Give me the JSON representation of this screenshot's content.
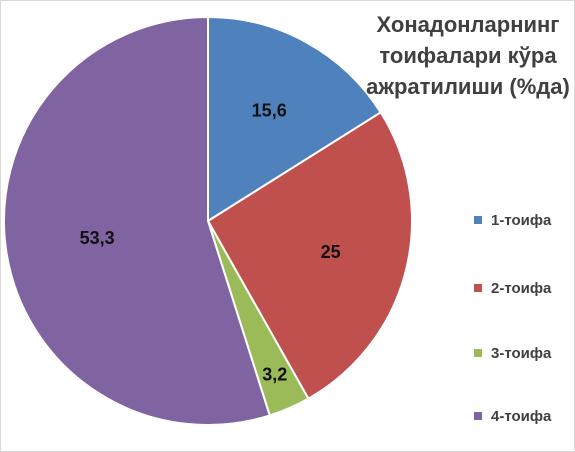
{
  "chart_data": {
    "type": "pie",
    "title_lines": [
      "Хонадонларнинг",
      "тоифалари кўра",
      "ажратилиши (%да)"
    ],
    "categories": [
      "1-тоифа",
      "2-тоифа",
      "3-тоифа",
      "4-тоифа"
    ],
    "values": [
      15.6,
      25,
      3.2,
      53.3
    ],
    "value_labels": [
      "15,6",
      "25",
      "3,2",
      "53,3"
    ],
    "colors": [
      "#4f81bd",
      "#c0504d",
      "#9bbb59",
      "#8064a2"
    ],
    "start_angle": "12 o'clock",
    "direction": "clockwise",
    "legend_position": "right",
    "data_labels": "inside"
  }
}
